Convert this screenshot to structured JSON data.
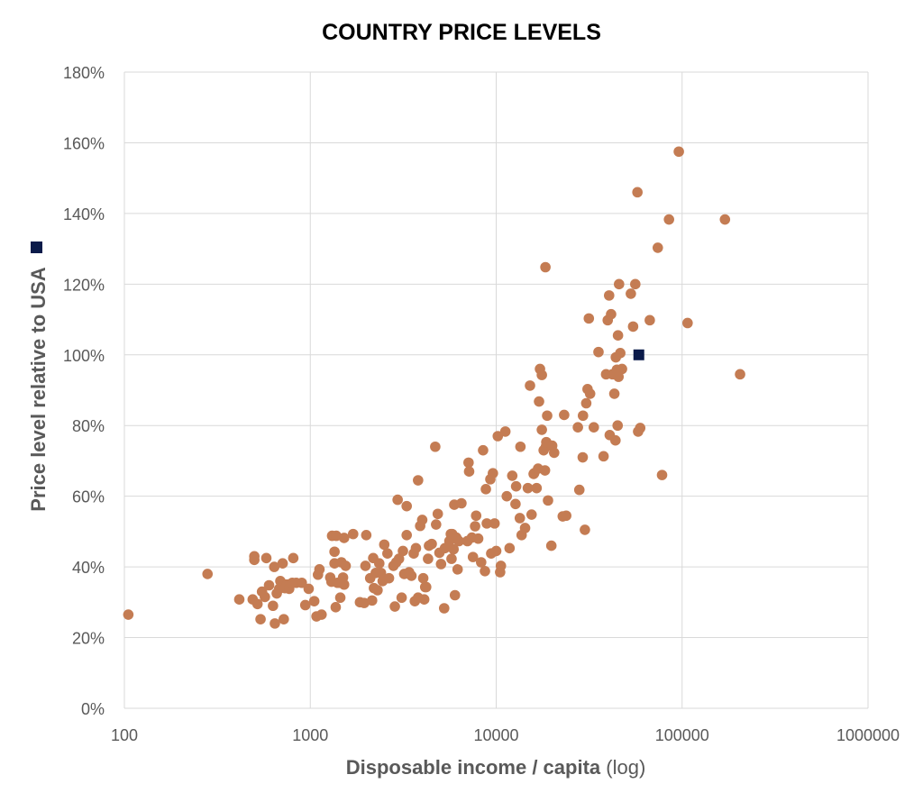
{
  "chart_data": {
    "type": "scatter",
    "title": "COUNTRY PRICE LEVELS",
    "xlabel": "Disposable income / capita",
    "xlabel_suffix": " (log)",
    "ylabel": "Price level relative to USA",
    "x_scale": "log",
    "xlim": [
      100,
      1000000
    ],
    "ylim": [
      0,
      180
    ],
    "x_ticks": [
      100,
      1000,
      10000,
      100000,
      1000000
    ],
    "x_tick_labels": [
      "100",
      "1000",
      "10000",
      "100000",
      "1000000"
    ],
    "y_ticks": [
      0,
      20,
      40,
      60,
      80,
      100,
      120,
      140,
      160,
      180
    ],
    "y_tick_labels": [
      "0%",
      "20%",
      "40%",
      "60%",
      "80%",
      "100%",
      "120%",
      "140%",
      "160%",
      "180%"
    ],
    "grid": true,
    "legend": "left",
    "colors": {
      "countries": "#c47c53",
      "usa": "#0b1b4a",
      "grid": "#d9d9d9",
      "text": "#595959"
    },
    "series": [
      {
        "marker": "circle",
        "color": "#c47c53",
        "points": [
          [
            105,
            26.5
          ],
          [
            280,
            38
          ],
          [
            415,
            30.8
          ],
          [
            490,
            30.8
          ],
          [
            500,
            43
          ],
          [
            500,
            42
          ],
          [
            520,
            29.5
          ],
          [
            540,
            25.2
          ],
          [
            550,
            33
          ],
          [
            570,
            31.5
          ],
          [
            580,
            42.5
          ],
          [
            600,
            34.8
          ],
          [
            630,
            29
          ],
          [
            640,
            40
          ],
          [
            645,
            24
          ],
          [
            660,
            32.5
          ],
          [
            680,
            33.8
          ],
          [
            690,
            36
          ],
          [
            700,
            35.5
          ],
          [
            710,
            41
          ],
          [
            720,
            25.2
          ],
          [
            730,
            34
          ],
          [
            750,
            35
          ],
          [
            770,
            33.8
          ],
          [
            800,
            35.5
          ],
          [
            810,
            42.5
          ],
          [
            840,
            35.5
          ],
          [
            900,
            35.5
          ],
          [
            940,
            29.2
          ],
          [
            980,
            33.8
          ],
          [
            1050,
            30.3
          ],
          [
            1080,
            26
          ],
          [
            1100,
            37.8
          ],
          [
            1120,
            39.3
          ],
          [
            1150,
            26.5
          ],
          [
            1280,
            37
          ],
          [
            1300,
            35.8
          ],
          [
            1310,
            48.8
          ],
          [
            1350,
            41
          ],
          [
            1350,
            44.3
          ],
          [
            1370,
            28.6
          ],
          [
            1380,
            48.8
          ],
          [
            1400,
            35.5
          ],
          [
            1430,
            35.5
          ],
          [
            1450,
            31.3
          ],
          [
            1470,
            41.3
          ],
          [
            1500,
            37
          ],
          [
            1520,
            48.2
          ],
          [
            1520,
            35
          ],
          [
            1550,
            40.3
          ],
          [
            1700,
            49.3
          ],
          [
            1850,
            30
          ],
          [
            1950,
            29.8
          ],
          [
            1980,
            40.3
          ],
          [
            2000,
            49
          ],
          [
            2100,
            36.8
          ],
          [
            2150,
            30.5
          ],
          [
            2180,
            42.5
          ],
          [
            2200,
            34
          ],
          [
            2250,
            38.3
          ],
          [
            2300,
            33.4
          ],
          [
            2350,
            41
          ],
          [
            2400,
            38.3
          ],
          [
            2450,
            36
          ],
          [
            2500,
            46.3
          ],
          [
            2600,
            43.8
          ],
          [
            2650,
            36.8
          ],
          [
            2800,
            40.3
          ],
          [
            2850,
            28.8
          ],
          [
            2900,
            41.3
          ],
          [
            2950,
            59
          ],
          [
            3000,
            42.3
          ],
          [
            3100,
            31.3
          ],
          [
            3150,
            44.5
          ],
          [
            3200,
            38
          ],
          [
            3300,
            57.2
          ],
          [
            3300,
            49
          ],
          [
            3400,
            38.5
          ],
          [
            3500,
            37.5
          ],
          [
            3600,
            43.8
          ],
          [
            3650,
            30.3
          ],
          [
            3700,
            45.3
          ],
          [
            3800,
            31.3
          ],
          [
            3800,
            64.5
          ],
          [
            3900,
            51.6
          ],
          [
            4000,
            53.3
          ],
          [
            4050,
            36.8
          ],
          [
            4100,
            30.8
          ],
          [
            4150,
            34.3
          ],
          [
            4200,
            34.3
          ],
          [
            4300,
            42.3
          ],
          [
            4350,
            46
          ],
          [
            4500,
            46.5
          ],
          [
            4700,
            74
          ],
          [
            4750,
            52
          ],
          [
            4850,
            55
          ],
          [
            4950,
            44
          ],
          [
            5050,
            40.8
          ],
          [
            5250,
            28.3
          ],
          [
            5300,
            45.3
          ],
          [
            5600,
            47.3
          ],
          [
            5700,
            49.3
          ],
          [
            5750,
            42.3
          ],
          [
            5800,
            49.3
          ],
          [
            5900,
            45
          ],
          [
            5950,
            57.6
          ],
          [
            6000,
            32
          ],
          [
            6100,
            48.3
          ],
          [
            6200,
            39.3
          ],
          [
            6300,
            47.3
          ],
          [
            6500,
            58
          ],
          [
            7000,
            47.3
          ],
          [
            7100,
            69.5
          ],
          [
            7150,
            67
          ],
          [
            7400,
            48.3
          ],
          [
            7500,
            42.8
          ],
          [
            7700,
            51.5
          ],
          [
            7800,
            54.5
          ],
          [
            8000,
            48
          ],
          [
            8300,
            41.3
          ],
          [
            8500,
            73
          ],
          [
            8700,
            38.8
          ],
          [
            8800,
            62
          ],
          [
            8900,
            52.3
          ],
          [
            9300,
            64.8
          ],
          [
            9400,
            43.8
          ],
          [
            9600,
            66.5
          ],
          [
            9800,
            52.3
          ],
          [
            10000,
            44.5
          ],
          [
            10200,
            77
          ],
          [
            10500,
            38.5
          ],
          [
            10600,
            40.3
          ],
          [
            11200,
            78.3
          ],
          [
            11400,
            60
          ],
          [
            11800,
            45.3
          ],
          [
            12200,
            65.8
          ],
          [
            12700,
            57.8
          ],
          [
            12800,
            62.8
          ],
          [
            13400,
            53.8
          ],
          [
            13500,
            74
          ],
          [
            13700,
            49
          ],
          [
            14300,
            51
          ],
          [
            14800,
            62.3
          ],
          [
            15200,
            91.3
          ],
          [
            15500,
            54.8
          ],
          [
            15900,
            66.3
          ],
          [
            16000,
            66.5
          ],
          [
            16500,
            62.3
          ],
          [
            16800,
            67.8
          ],
          [
            17000,
            86.8
          ],
          [
            17200,
            96
          ],
          [
            17600,
            94.3
          ],
          [
            17600,
            78.8
          ],
          [
            18000,
            73
          ],
          [
            18300,
            67.3
          ],
          [
            18400,
            124.8
          ],
          [
            18500,
            74
          ],
          [
            18600,
            75.3
          ],
          [
            18800,
            82.8
          ],
          [
            19000,
            58.8
          ],
          [
            19800,
            46
          ],
          [
            20000,
            74.3
          ],
          [
            20500,
            72.3
          ],
          [
            22800,
            54.3
          ],
          [
            23200,
            83
          ],
          [
            23800,
            54.5
          ],
          [
            27500,
            79.5
          ],
          [
            28000,
            61.8
          ],
          [
            29200,
            71
          ],
          [
            29300,
            82.8
          ],
          [
            30000,
            50.5
          ],
          [
            30500,
            86.3
          ],
          [
            31000,
            90.3
          ],
          [
            31500,
            110.3
          ],
          [
            32000,
            89
          ],
          [
            33500,
            79.5
          ],
          [
            35500,
            100.8
          ],
          [
            37800,
            71.3
          ],
          [
            39000,
            94.5
          ],
          [
            39800,
            109.8
          ],
          [
            40500,
            116.8
          ],
          [
            40800,
            77.3
          ],
          [
            41500,
            111.5
          ],
          [
            42200,
            94.5
          ],
          [
            43200,
            89
          ],
          [
            43800,
            75.8
          ],
          [
            44000,
            99.3
          ],
          [
            44600,
            95.8
          ],
          [
            45000,
            80
          ],
          [
            45200,
            105.5
          ],
          [
            45500,
            93.8
          ],
          [
            45800,
            120
          ],
          [
            46500,
            100.5
          ],
          [
            47500,
            96
          ],
          [
            53000,
            117.3
          ],
          [
            54500,
            108
          ],
          [
            56000,
            120
          ],
          [
            57500,
            146
          ],
          [
            58000,
            78.3
          ],
          [
            59500,
            79.3
          ],
          [
            67000,
            109.8
          ],
          [
            74000,
            130.3
          ],
          [
            78000,
            66
          ],
          [
            85000,
            138.3
          ],
          [
            96000,
            157.5
          ],
          [
            107000,
            109
          ],
          [
            170000,
            138.3
          ],
          [
            205000,
            94.5
          ]
        ]
      },
      {
        "marker": "square",
        "color": "#0b1b4a",
        "points": [
          [
            58500,
            100
          ]
        ]
      }
    ]
  }
}
